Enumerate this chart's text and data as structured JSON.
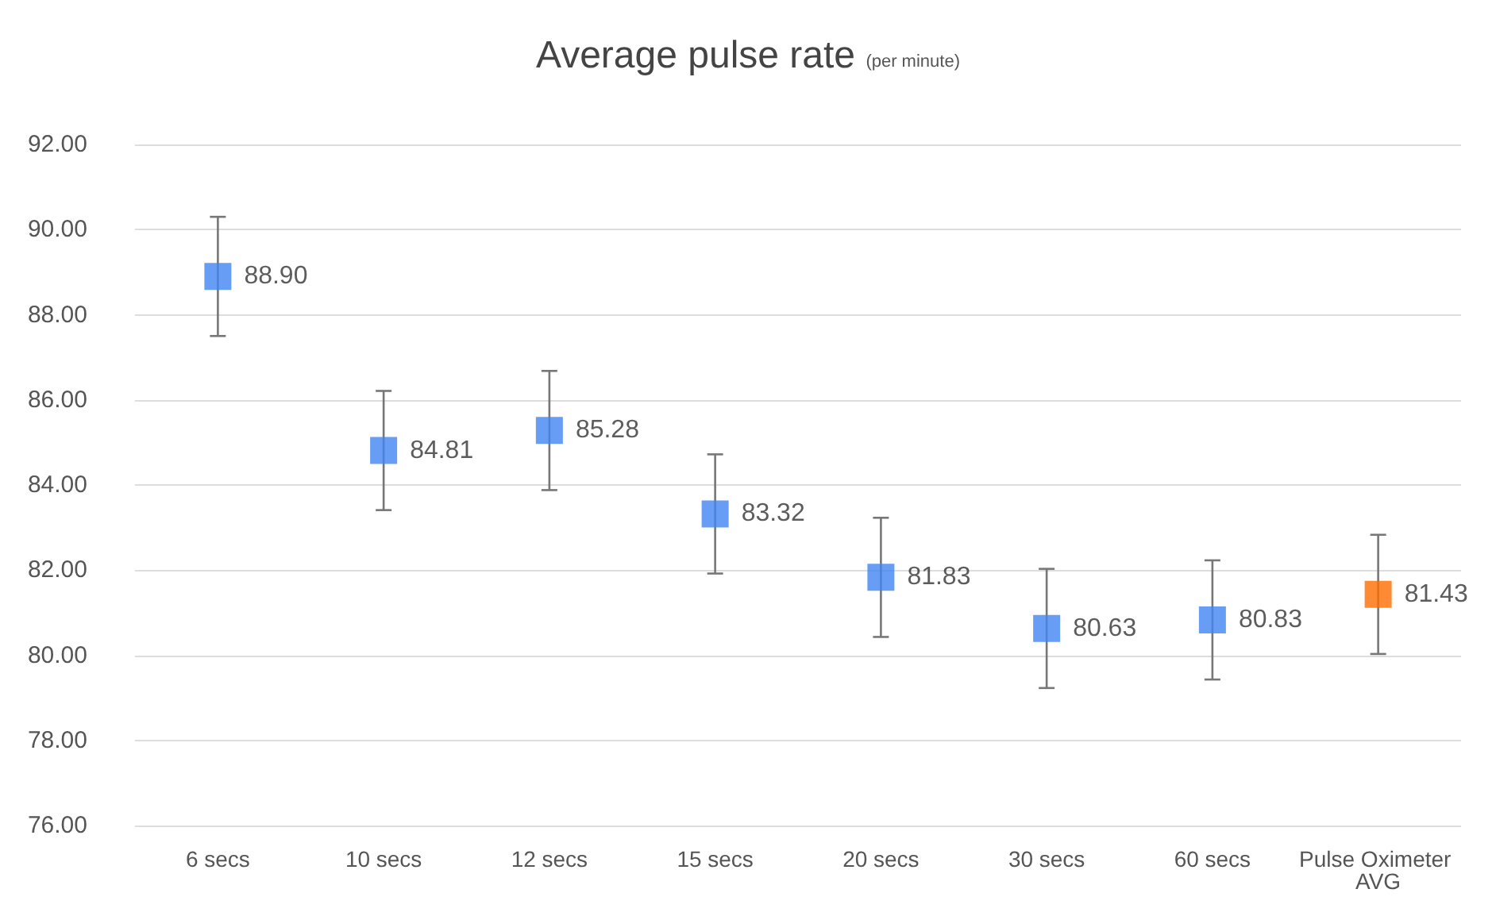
{
  "chart_data": {
    "type": "scatter",
    "title": "Average pulse rate",
    "subtitle": "(per minute)",
    "categories": [
      "6 secs",
      "10 secs",
      "12 secs",
      "15 secs",
      "20 secs",
      "30 secs",
      "60 secs",
      "Pulse Oximeter AVG"
    ],
    "values": [
      88.9,
      84.81,
      85.28,
      83.32,
      81.83,
      80.63,
      80.83,
      81.43
    ],
    "colors": [
      "#4285f4",
      "#4285f4",
      "#4285f4",
      "#4285f4",
      "#4285f4",
      "#4285f4",
      "#4285f4",
      "#ff6d01"
    ],
    "errors": [
      1.4,
      1.4,
      1.4,
      1.4,
      1.4,
      1.4,
      1.4,
      1.4
    ],
    "ylim": [
      76,
      92
    ],
    "yticks": [
      {
        "value": 76,
        "label": "76.00"
      },
      {
        "value": 78,
        "label": "78.00"
      },
      {
        "value": 80,
        "label": "80.00"
      },
      {
        "value": 82,
        "label": "82.00"
      },
      {
        "value": 84,
        "label": "84.00"
      },
      {
        "value": 86,
        "label": "86.00"
      },
      {
        "value": 88,
        "label": "88.00"
      },
      {
        "value": 90,
        "label": "90.00"
      },
      {
        "value": 92,
        "label": "92.00"
      }
    ],
    "value_labels": [
      "88.90",
      "84.81",
      "85.28",
      "83.32",
      "81.83",
      "80.63",
      "80.83",
      "81.43"
    ],
    "grid": "y",
    "marker": "square"
  }
}
